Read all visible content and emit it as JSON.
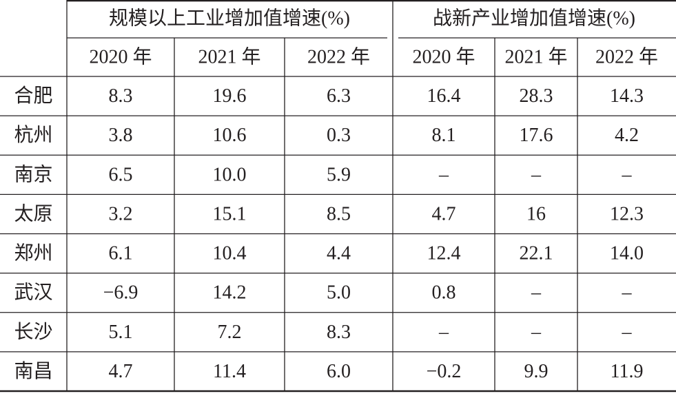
{
  "table": {
    "groups": [
      "规模以上工业增加值增速(%)",
      "战新产业增加值增速(%)"
    ],
    "years": [
      "2020 年",
      "2021 年",
      "2022 年",
      "2020 年",
      "2021 年",
      "2022 年"
    ],
    "rows": [
      [
        "合肥",
        "8.3",
        "19.6",
        "6.3",
        "16.4",
        "28.3",
        "14.3"
      ],
      [
        "杭州",
        "3.8",
        "10.6",
        "0.3",
        "8.1",
        "17.6",
        "4.2"
      ],
      [
        "南京",
        "6.5",
        "10.0",
        "5.9",
        "–",
        "–",
        "–"
      ],
      [
        "太原",
        "3.2",
        "15.1",
        "8.5",
        "4.7",
        "16",
        "12.3"
      ],
      [
        "郑州",
        "6.1",
        "10.4",
        "4.4",
        "12.4",
        "22.1",
        "14.0"
      ],
      [
        "武汉",
        "−6.9",
        "14.2",
        "5.0",
        "0.8",
        "–",
        "–"
      ],
      [
        "长沙",
        "5.1",
        "7.2",
        "8.3",
        "–",
        "–",
        "–"
      ],
      [
        "南昌",
        "4.7",
        "11.4",
        "6.0",
        "−0.2",
        "9.9",
        "11.9"
      ]
    ]
  }
}
